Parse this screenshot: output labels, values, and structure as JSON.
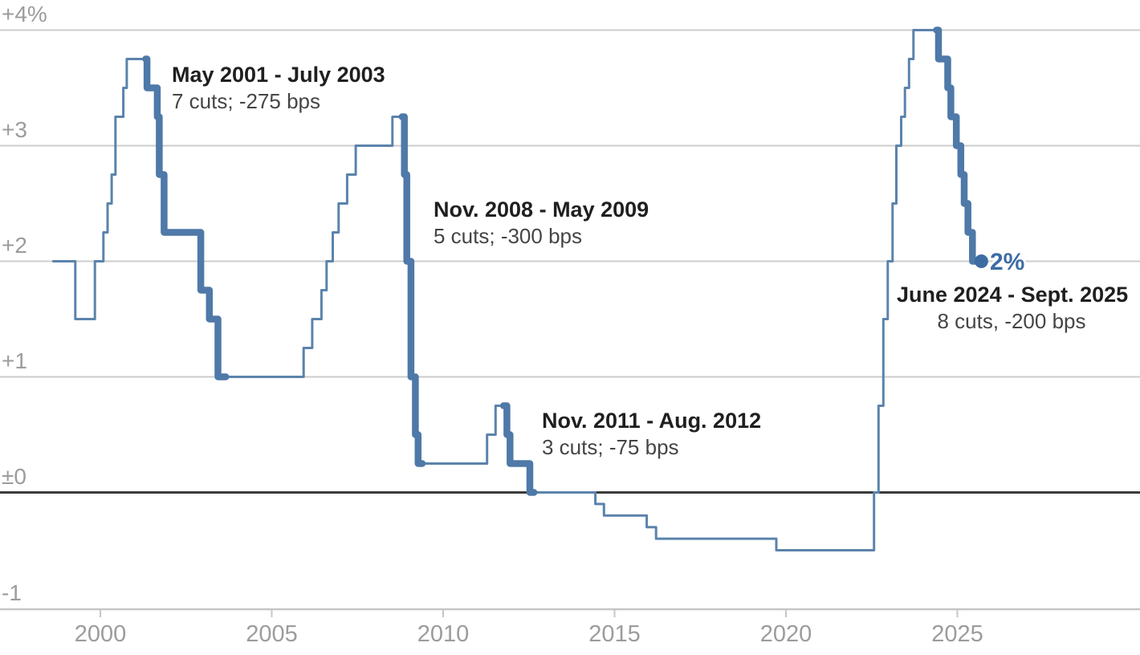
{
  "colors": {
    "line": "#5b83ac",
    "line_thick": "#4e79a8",
    "accent": "#3d6ca3",
    "grid": "#cccccc",
    "zero_line": "#3b3b3b",
    "bottom_axis": "#c6c6c6",
    "axis_text": "#9c9c9c",
    "annotation_title_text": "#1f1f1f",
    "annotation_sub_text": "#454545",
    "background": "#ffffff"
  },
  "chart_data": {
    "type": "line",
    "step": true,
    "title": "",
    "xlabel": "",
    "ylabel": "",
    "unit": "%",
    "grid": true,
    "xlim": [
      1998.6,
      2026.4
    ],
    "ylim": [
      -1,
      4
    ],
    "x_ticks": [
      {
        "value": 2000,
        "label": "2000"
      },
      {
        "value": 2005,
        "label": "2005"
      },
      {
        "value": 2010,
        "label": "2010"
      },
      {
        "value": 2015,
        "label": "2015"
      },
      {
        "value": 2020,
        "label": "2020"
      },
      {
        "value": 2025,
        "label": "2025"
      }
    ],
    "y_ticks": [
      {
        "value": 4,
        "label": "+4%"
      },
      {
        "value": 3,
        "label": "+3"
      },
      {
        "value": 2,
        "label": "+2"
      },
      {
        "value": 1,
        "label": "+1"
      },
      {
        "value": 0,
        "label": "±0"
      },
      {
        "value": -1,
        "label": "-1"
      }
    ],
    "points": [
      [
        1999.0,
        2.0
      ],
      [
        1999.27,
        1.5
      ],
      [
        1999.84,
        2.0
      ],
      [
        2000.09,
        2.25
      ],
      [
        2000.21,
        2.5
      ],
      [
        2000.33,
        2.75
      ],
      [
        2000.44,
        3.25
      ],
      [
        2000.67,
        3.5
      ],
      [
        2000.77,
        3.75
      ],
      [
        2001.36,
        3.5
      ],
      [
        2001.66,
        3.25
      ],
      [
        2001.72,
        2.75
      ],
      [
        2001.86,
        2.25
      ],
      [
        2002.93,
        1.75
      ],
      [
        2003.18,
        1.5
      ],
      [
        2003.43,
        1.0
      ],
      [
        2005.93,
        1.25
      ],
      [
        2006.18,
        1.5
      ],
      [
        2006.45,
        1.75
      ],
      [
        2006.6,
        2.0
      ],
      [
        2006.78,
        2.25
      ],
      [
        2006.95,
        2.5
      ],
      [
        2007.2,
        2.75
      ],
      [
        2007.45,
        3.0
      ],
      [
        2008.52,
        3.25
      ],
      [
        2008.87,
        2.75
      ],
      [
        2008.94,
        2.0
      ],
      [
        2009.06,
        1.0
      ],
      [
        2009.19,
        0.5
      ],
      [
        2009.27,
        0.25
      ],
      [
        2011.28,
        0.5
      ],
      [
        2011.53,
        0.75
      ],
      [
        2011.86,
        0.5
      ],
      [
        2011.95,
        0.25
      ],
      [
        2012.53,
        0.0
      ],
      [
        2014.44,
        -0.1
      ],
      [
        2014.69,
        -0.2
      ],
      [
        2015.94,
        -0.3
      ],
      [
        2016.21,
        -0.4
      ],
      [
        2019.72,
        -0.5
      ],
      [
        2022.57,
        0.0
      ],
      [
        2022.7,
        0.75
      ],
      [
        2022.84,
        1.5
      ],
      [
        2022.97,
        2.0
      ],
      [
        2023.11,
        2.5
      ],
      [
        2023.22,
        3.0
      ],
      [
        2023.36,
        3.25
      ],
      [
        2023.47,
        3.5
      ],
      [
        2023.59,
        3.75
      ],
      [
        2023.72,
        4.0
      ],
      [
        2024.45,
        3.75
      ],
      [
        2024.72,
        3.5
      ],
      [
        2024.81,
        3.25
      ],
      [
        2024.97,
        3.0
      ],
      [
        2025.1,
        2.75
      ],
      [
        2025.2,
        2.5
      ],
      [
        2025.31,
        2.25
      ],
      [
        2025.44,
        2.0
      ]
    ],
    "end_point": {
      "year": 2025.7,
      "value": 2,
      "label": "2%"
    },
    "cut_cycles": [
      {
        "label": "May 2001 - July 2003",
        "sublabel": "7 cuts; -275 bps",
        "start_year": 2001.32,
        "end_year": 2003.66
      },
      {
        "label": "Nov. 2008 - May 2009",
        "sublabel": "5 cuts; -300 bps",
        "start_year": 2008.8,
        "end_year": 2009.39
      },
      {
        "label": "Nov. 2011 - Aug. 2012",
        "sublabel": "3 cuts; -75 bps",
        "start_year": 2011.76,
        "end_year": 2012.65
      },
      {
        "label": "June 2024 - Sept. 2025",
        "sublabel": "8 cuts, -200 bps",
        "start_year": 2024.39,
        "end_year": 2025.7
      }
    ]
  }
}
